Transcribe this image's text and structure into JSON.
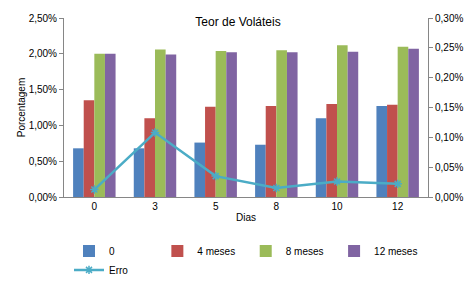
{
  "chart_data": {
    "type": "bar",
    "title": "Teor de Voláteis",
    "x_label": "Dias",
    "y_label": "Porcentagem",
    "categories": [
      "0",
      "3",
      "5",
      "8",
      "10",
      "12"
    ],
    "series": [
      {
        "name": "0",
        "color": "#4f81bd",
        "values": [
          0.68,
          0.68,
          0.76,
          0.73,
          1.1,
          1.27
        ]
      },
      {
        "name": "4 meses",
        "color": "#c0504d",
        "values": [
          1.35,
          1.1,
          1.26,
          1.27,
          1.3,
          1.29
        ]
      },
      {
        "name": "8 meses",
        "color": "#9bbb59",
        "values": [
          2.0,
          2.06,
          2.04,
          2.05,
          2.12,
          2.1
        ]
      },
      {
        "name": "12 meses",
        "color": "#8064a2",
        "values": [
          2.0,
          1.99,
          2.02,
          2.02,
          2.03,
          2.07
        ]
      },
      {
        "name": "Erro",
        "color": "#4bacc6",
        "type": "line",
        "marker": "asterisk",
        "axis": "y2",
        "values": [
          0.0125,
          0.108,
          0.035,
          0.015,
          0.026,
          0.022
        ]
      }
    ],
    "ylim": [
      0,
      2.5
    ],
    "yticks": [
      {
        "value": 0,
        "label": "0,00%"
      },
      {
        "value": 0.5,
        "label": "0,50%"
      },
      {
        "value": 1.0,
        "label": "1,00%"
      },
      {
        "value": 1.5,
        "label": "1,50%"
      },
      {
        "value": 2.0,
        "label": "2,00%"
      },
      {
        "value": 2.5,
        "label": "2,50%"
      }
    ],
    "y2lim": [
      0,
      0.3
    ],
    "y2ticks": [
      {
        "value": 0,
        "label": "0,00%"
      },
      {
        "value": 0.05,
        "label": "0,05%"
      },
      {
        "value": 0.1,
        "label": "0,10%"
      },
      {
        "value": 0.15,
        "label": "0,15%"
      },
      {
        "value": 0.2,
        "label": "0,20%"
      },
      {
        "value": 0.25,
        "label": "0,25%"
      },
      {
        "value": 0.3,
        "label": "0,30%"
      }
    ],
    "grid": false,
    "legend": "bottom"
  }
}
